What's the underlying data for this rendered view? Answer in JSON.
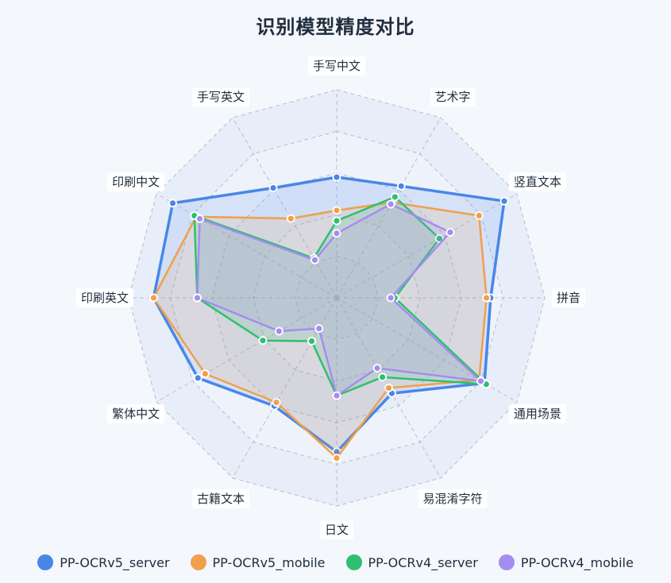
{
  "chart_data": {
    "type": "radar",
    "title": "识别模型精度对比",
    "categories": [
      "手写中文",
      "艺术字",
      "竖直文本",
      "拼音",
      "通用场景",
      "易混淆字符",
      "日文",
      "古籍文本",
      "繁体中文",
      "印刷英文",
      "印刷中文",
      "手写英文"
    ],
    "rmax": 1.0,
    "grid_levels": 5,
    "series": [
      {
        "name": "PP-OCRv5_server",
        "color": "#4a86e8",
        "values": [
          0.58,
          0.62,
          0.93,
          0.74,
          0.82,
          0.53,
          0.74,
          0.6,
          0.77,
          0.88,
          0.91,
          0.61
        ]
      },
      {
        "name": "PP-OCRv5_mobile",
        "color": "#f0a04b",
        "values": [
          0.42,
          0.53,
          0.79,
          0.72,
          0.79,
          0.5,
          0.77,
          0.58,
          0.73,
          0.88,
          0.78,
          0.44
        ]
      },
      {
        "name": "PP-OCRv4_server",
        "color": "#2fbf71",
        "values": [
          0.37,
          0.56,
          0.57,
          0.28,
          0.83,
          0.44,
          0.47,
          0.24,
          0.41,
          0.67,
          0.79,
          0.22
        ]
      },
      {
        "name": "PP-OCRv4_mobile",
        "color": "#a58cf2",
        "values": [
          0.31,
          0.52,
          0.63,
          0.26,
          0.8,
          0.39,
          0.47,
          0.17,
          0.32,
          0.67,
          0.76,
          0.21
        ]
      }
    ]
  }
}
